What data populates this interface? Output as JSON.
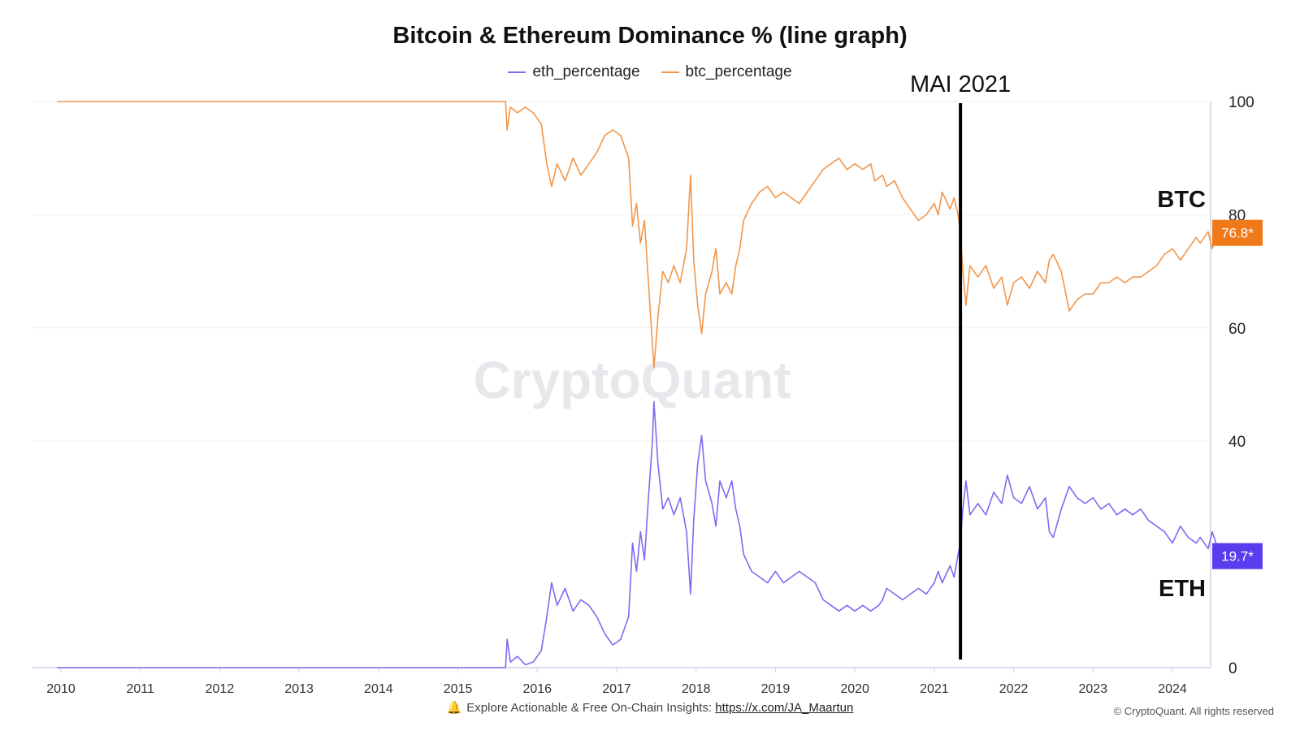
{
  "chart_data": {
    "type": "line",
    "title": "Bitcoin & Ethereum Dominance % (line graph)",
    "watermark": "CryptoQuant",
    "xlim": [
      2009.8,
      2024.95
    ],
    "ylim": [
      0,
      100
    ],
    "x_ticks": [
      "2010",
      "2011",
      "2012",
      "2013",
      "2014",
      "2015",
      "2016",
      "2017",
      "2018",
      "2019",
      "2020",
      "2021",
      "2022",
      "2023",
      "2024"
    ],
    "y_ticks": [
      "0",
      "40",
      "60",
      "80",
      "100"
    ],
    "grid": true,
    "legend_position": "top-center",
    "series": [
      {
        "name": "eth_percentage",
        "color": "#7b6cf0",
        "last_value_label": "19.7*",
        "points": [
          [
            2009.95,
            0
          ],
          [
            2015.6,
            0
          ],
          [
            2015.62,
            5
          ],
          [
            2015.66,
            1
          ],
          [
            2015.75,
            2
          ],
          [
            2015.85,
            0.5
          ],
          [
            2015.95,
            1
          ],
          [
            2016.05,
            3
          ],
          [
            2016.12,
            9
          ],
          [
            2016.18,
            15
          ],
          [
            2016.25,
            11
          ],
          [
            2016.35,
            14
          ],
          [
            2016.45,
            10
          ],
          [
            2016.55,
            12
          ],
          [
            2016.65,
            11
          ],
          [
            2016.75,
            9
          ],
          [
            2016.85,
            6
          ],
          [
            2016.95,
            4
          ],
          [
            2017.05,
            5
          ],
          [
            2017.15,
            9
          ],
          [
            2017.2,
            22
          ],
          [
            2017.25,
            17
          ],
          [
            2017.3,
            24
          ],
          [
            2017.35,
            19
          ],
          [
            2017.4,
            30
          ],
          [
            2017.45,
            40
          ],
          [
            2017.47,
            47
          ],
          [
            2017.52,
            36
          ],
          [
            2017.58,
            28
          ],
          [
            2017.65,
            30
          ],
          [
            2017.72,
            27
          ],
          [
            2017.8,
            30
          ],
          [
            2017.88,
            24
          ],
          [
            2017.93,
            13
          ],
          [
            2017.97,
            26
          ],
          [
            2018.02,
            36
          ],
          [
            2018.07,
            41
          ],
          [
            2018.12,
            33
          ],
          [
            2018.2,
            29
          ],
          [
            2018.25,
            25
          ],
          [
            2018.3,
            33
          ],
          [
            2018.38,
            30
          ],
          [
            2018.45,
            33
          ],
          [
            2018.5,
            28
          ],
          [
            2018.55,
            25
          ],
          [
            2018.6,
            20
          ],
          [
            2018.7,
            17
          ],
          [
            2018.8,
            16
          ],
          [
            2018.9,
            15
          ],
          [
            2019.0,
            17
          ],
          [
            2019.1,
            15
          ],
          [
            2019.2,
            16
          ],
          [
            2019.3,
            17
          ],
          [
            2019.4,
            16
          ],
          [
            2019.5,
            15
          ],
          [
            2019.6,
            12
          ],
          [
            2019.7,
            11
          ],
          [
            2019.8,
            10
          ],
          [
            2019.9,
            11
          ],
          [
            2020.0,
            10
          ],
          [
            2020.1,
            11
          ],
          [
            2020.2,
            10
          ],
          [
            2020.3,
            11
          ],
          [
            2020.35,
            12
          ],
          [
            2020.4,
            14
          ],
          [
            2020.5,
            13
          ],
          [
            2020.6,
            12
          ],
          [
            2020.7,
            13
          ],
          [
            2020.8,
            14
          ],
          [
            2020.9,
            13
          ],
          [
            2021.0,
            15
          ],
          [
            2021.05,
            17
          ],
          [
            2021.1,
            15
          ],
          [
            2021.2,
            18
          ],
          [
            2021.25,
            16
          ],
          [
            2021.3,
            20
          ],
          [
            2021.33,
            22
          ],
          [
            2021.36,
            28
          ],
          [
            2021.4,
            33
          ],
          [
            2021.45,
            27
          ],
          [
            2021.55,
            29
          ],
          [
            2021.65,
            27
          ],
          [
            2021.75,
            31
          ],
          [
            2021.85,
            29
          ],
          [
            2021.92,
            34
          ],
          [
            2022.0,
            30
          ],
          [
            2022.1,
            29
          ],
          [
            2022.2,
            32
          ],
          [
            2022.3,
            28
          ],
          [
            2022.4,
            30
          ],
          [
            2022.45,
            24
          ],
          [
            2022.5,
            23
          ],
          [
            2022.6,
            28
          ],
          [
            2022.7,
            32
          ],
          [
            2022.8,
            30
          ],
          [
            2022.9,
            29
          ],
          [
            2023.0,
            30
          ],
          [
            2023.1,
            28
          ],
          [
            2023.2,
            29
          ],
          [
            2023.3,
            27
          ],
          [
            2023.4,
            28
          ],
          [
            2023.5,
            27
          ],
          [
            2023.6,
            28
          ],
          [
            2023.7,
            26
          ],
          [
            2023.8,
            25
          ],
          [
            2023.9,
            24
          ],
          [
            2024.0,
            22
          ],
          [
            2024.1,
            25
          ],
          [
            2024.2,
            23
          ],
          [
            2024.3,
            22
          ],
          [
            2024.35,
            23
          ],
          [
            2024.45,
            21
          ],
          [
            2024.5,
            24
          ],
          [
            2024.55,
            22
          ],
          [
            2024.58,
            19
          ],
          [
            2024.62,
            19.7
          ]
        ]
      },
      {
        "name": "btc_percentage",
        "color": "#f2964a",
        "last_value_label": "76.8*",
        "points": [
          [
            2009.95,
            100
          ],
          [
            2015.6,
            100
          ],
          [
            2015.62,
            95
          ],
          [
            2015.66,
            99
          ],
          [
            2015.75,
            98
          ],
          [
            2015.85,
            99
          ],
          [
            2015.95,
            98
          ],
          [
            2016.05,
            96
          ],
          [
            2016.12,
            89
          ],
          [
            2016.18,
            85
          ],
          [
            2016.25,
            89
          ],
          [
            2016.35,
            86
          ],
          [
            2016.45,
            90
          ],
          [
            2016.55,
            87
          ],
          [
            2016.65,
            89
          ],
          [
            2016.75,
            91
          ],
          [
            2016.85,
            94
          ],
          [
            2016.95,
            95
          ],
          [
            2017.05,
            94
          ],
          [
            2017.15,
            90
          ],
          [
            2017.2,
            78
          ],
          [
            2017.25,
            82
          ],
          [
            2017.3,
            75
          ],
          [
            2017.35,
            79
          ],
          [
            2017.4,
            68
          ],
          [
            2017.45,
            57
          ],
          [
            2017.47,
            53
          ],
          [
            2017.52,
            62
          ],
          [
            2017.58,
            70
          ],
          [
            2017.65,
            68
          ],
          [
            2017.72,
            71
          ],
          [
            2017.8,
            68
          ],
          [
            2017.88,
            74
          ],
          [
            2017.93,
            87
          ],
          [
            2017.97,
            72
          ],
          [
            2018.02,
            64
          ],
          [
            2018.07,
            59
          ],
          [
            2018.12,
            66
          ],
          [
            2018.2,
            70
          ],
          [
            2018.25,
            74
          ],
          [
            2018.3,
            66
          ],
          [
            2018.38,
            68
          ],
          [
            2018.45,
            66
          ],
          [
            2018.5,
            71
          ],
          [
            2018.55,
            74
          ],
          [
            2018.6,
            79
          ],
          [
            2018.7,
            82
          ],
          [
            2018.8,
            84
          ],
          [
            2018.9,
            85
          ],
          [
            2019.0,
            83
          ],
          [
            2019.1,
            84
          ],
          [
            2019.2,
            83
          ],
          [
            2019.3,
            82
          ],
          [
            2019.4,
            84
          ],
          [
            2019.5,
            86
          ],
          [
            2019.6,
            88
          ],
          [
            2019.7,
            89
          ],
          [
            2019.8,
            90
          ],
          [
            2019.9,
            88
          ],
          [
            2020.0,
            89
          ],
          [
            2020.1,
            88
          ],
          [
            2020.2,
            89
          ],
          [
            2020.25,
            86
          ],
          [
            2020.35,
            87
          ],
          [
            2020.4,
            85
          ],
          [
            2020.5,
            86
          ],
          [
            2020.6,
            83
          ],
          [
            2020.7,
            81
          ],
          [
            2020.8,
            79
          ],
          [
            2020.9,
            80
          ],
          [
            2021.0,
            82
          ],
          [
            2021.05,
            80
          ],
          [
            2021.1,
            84
          ],
          [
            2021.2,
            81
          ],
          [
            2021.25,
            83
          ],
          [
            2021.3,
            80
          ],
          [
            2021.33,
            77
          ],
          [
            2021.36,
            70
          ],
          [
            2021.4,
            64
          ],
          [
            2021.45,
            71
          ],
          [
            2021.55,
            69
          ],
          [
            2021.65,
            71
          ],
          [
            2021.75,
            67
          ],
          [
            2021.85,
            69
          ],
          [
            2021.92,
            64
          ],
          [
            2022.0,
            68
          ],
          [
            2022.1,
            69
          ],
          [
            2022.2,
            67
          ],
          [
            2022.3,
            70
          ],
          [
            2022.4,
            68
          ],
          [
            2022.45,
            72
          ],
          [
            2022.5,
            73
          ],
          [
            2022.6,
            70
          ],
          [
            2022.7,
            63
          ],
          [
            2022.8,
            65
          ],
          [
            2022.9,
            66
          ],
          [
            2023.0,
            66
          ],
          [
            2023.1,
            68
          ],
          [
            2023.2,
            68
          ],
          [
            2023.3,
            69
          ],
          [
            2023.4,
            68
          ],
          [
            2023.5,
            69
          ],
          [
            2023.6,
            69
          ],
          [
            2023.7,
            70
          ],
          [
            2023.8,
            71
          ],
          [
            2023.9,
            73
          ],
          [
            2024.0,
            74
          ],
          [
            2024.1,
            72
          ],
          [
            2024.2,
            74
          ],
          [
            2024.3,
            76
          ],
          [
            2024.35,
            75
          ],
          [
            2024.45,
            77
          ],
          [
            2024.5,
            74
          ],
          [
            2024.55,
            76
          ],
          [
            2024.58,
            79
          ],
          [
            2024.62,
            76.8
          ]
        ]
      }
    ],
    "annotations": [
      {
        "type": "vertical_line",
        "x": 2021.33,
        "label": "MAI 2021",
        "color": "#000000"
      },
      {
        "type": "text",
        "label": "BTC"
      },
      {
        "type": "text",
        "label": "ETH"
      }
    ]
  },
  "footer": {
    "bell_icon": "bell-icon",
    "text": "Explore Actionable & Free On-Chain Insights:",
    "link": "https://x.com/JA_Maartun",
    "copyright": "© CryptoQuant. All rights reserved"
  }
}
